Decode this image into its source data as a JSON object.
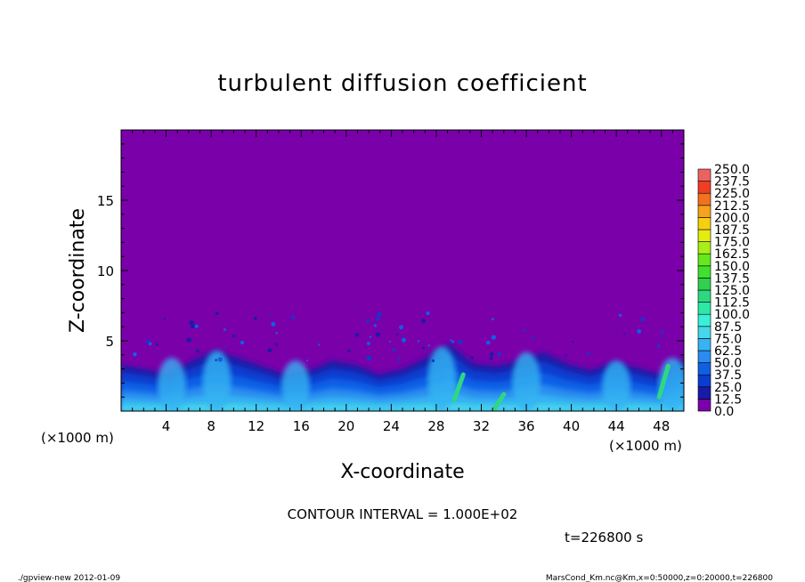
{
  "chart_data": {
    "type": "heatmap",
    "title": "turbulent diffusion coefficient",
    "xlabel": "X-coordinate",
    "ylabel": "Z-coordinate",
    "x_scale_label": "(×1000 m)",
    "y_scale_label": "(×1000 m)",
    "xlim": [
      0,
      50
    ],
    "ylim": [
      0,
      20
    ],
    "x_ticks": [
      "4",
      "8",
      "12",
      "16",
      "20",
      "24",
      "28",
      "32",
      "36",
      "40",
      "44",
      "48"
    ],
    "y_ticks": [
      "5",
      "10",
      "15"
    ],
    "colorbar": {
      "levels": [
        "0.0",
        "12.5",
        "25.0",
        "37.5",
        "50.0",
        "62.5",
        "75.0",
        "87.5",
        "100.0",
        "112.5",
        "125.0",
        "137.5",
        "150.0",
        "162.5",
        "175.0",
        "187.5",
        "200.0",
        "212.5",
        "225.0",
        "237.5",
        "250.0"
      ],
      "colors": [
        "#7a00aa",
        "#1a1aa8",
        "#0a3ccf",
        "#1060e6",
        "#2a8cf0",
        "#36b4f2",
        "#46d8ea",
        "#3af0d8",
        "#2ee8a8",
        "#2ed882",
        "#30d050",
        "#40e030",
        "#66e81e",
        "#a8ee18",
        "#e6ec10",
        "#f6d010",
        "#f6a21a",
        "#f37222",
        "#ef3e22",
        "#ec6262"
      ]
    },
    "background_value": 0.0,
    "boundary_layer_top_km": [
      3.3,
      3.0,
      2.6,
      3.6,
      4.3,
      3.8,
      3.2,
      2.6,
      2.9,
      3.6,
      3.3,
      2.6,
      3.0,
      3.8,
      4.8,
      3.4,
      3.2,
      3.6,
      4.2,
      3.4,
      2.9,
      3.5,
      3.1,
      2.6,
      3.8
    ],
    "contour_interval_text": "CONTOUR INTERVAL = 1.000E+02",
    "time_text": "t=226800 s"
  },
  "footer": {
    "left": "./gpview-new   2012-01-09",
    "right": "MarsCond_Km.nc@Km,x=0:50000,z=0:20000,t=226800"
  }
}
